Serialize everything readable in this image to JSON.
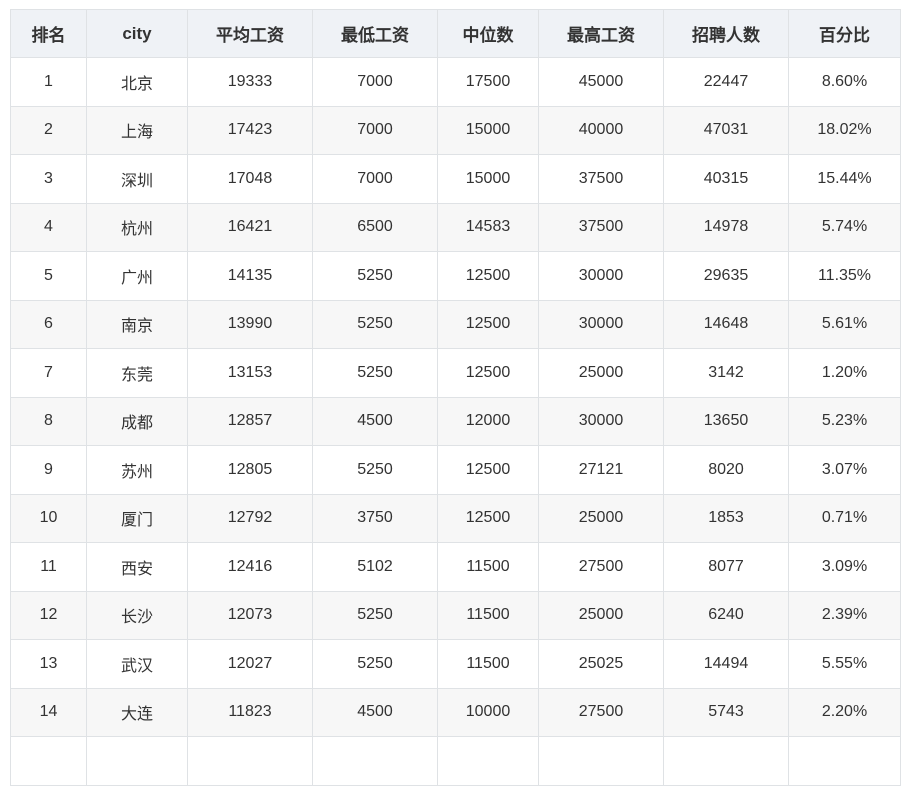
{
  "table": {
    "headers": [
      "排名",
      "city",
      "平均工资",
      "最低工资",
      "中位数",
      "最高工资",
      "招聘人数",
      "百分比"
    ],
    "rows": [
      [
        "1",
        "北京",
        "19333",
        "7000",
        "17500",
        "45000",
        "22447",
        "8.60%"
      ],
      [
        "2",
        "上海",
        "17423",
        "7000",
        "15000",
        "40000",
        "47031",
        "18.02%"
      ],
      [
        "3",
        "深圳",
        "17048",
        "7000",
        "15000",
        "37500",
        "40315",
        "15.44%"
      ],
      [
        "4",
        "杭州",
        "16421",
        "6500",
        "14583",
        "37500",
        "14978",
        "5.74%"
      ],
      [
        "5",
        "广州",
        "14135",
        "5250",
        "12500",
        "30000",
        "29635",
        "11.35%"
      ],
      [
        "6",
        "南京",
        "13990",
        "5250",
        "12500",
        "30000",
        "14648",
        "5.61%"
      ],
      [
        "7",
        "东莞",
        "13153",
        "5250",
        "12500",
        "25000",
        "3142",
        "1.20%"
      ],
      [
        "8",
        "成都",
        "12857",
        "4500",
        "12000",
        "30000",
        "13650",
        "5.23%"
      ],
      [
        "9",
        "苏州",
        "12805",
        "5250",
        "12500",
        "27121",
        "8020",
        "3.07%"
      ],
      [
        "10",
        "厦门",
        "12792",
        "3750",
        "12500",
        "25000",
        "1853",
        "0.71%"
      ],
      [
        "11",
        "西安",
        "12416",
        "5102",
        "11500",
        "27500",
        "8077",
        "3.09%"
      ],
      [
        "12",
        "长沙",
        "12073",
        "5250",
        "11500",
        "25000",
        "6240",
        "2.39%"
      ],
      [
        "13",
        "武汉",
        "12027",
        "5250",
        "11500",
        "25025",
        "14494",
        "5.55%"
      ],
      [
        "14",
        "大连",
        "11823",
        "4500",
        "10000",
        "27500",
        "5743",
        "2.20%"
      ]
    ]
  }
}
